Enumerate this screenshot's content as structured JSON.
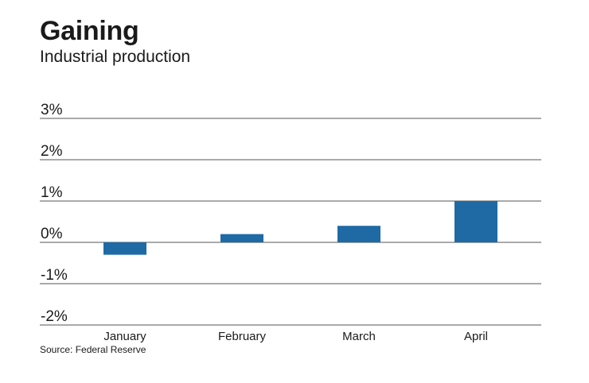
{
  "header": {
    "title": "Gaining",
    "subtitle": "Industrial production"
  },
  "source": "Source: Federal Reserve",
  "chart_data": {
    "type": "bar",
    "categories": [
      "January",
      "February",
      "March",
      "April"
    ],
    "values": [
      -0.3,
      0.2,
      0.4,
      1.0
    ],
    "ylim": [
      -2,
      3
    ],
    "yticks": [
      3,
      2,
      1,
      0,
      -1,
      -2
    ],
    "ytick_labels": [
      "3%",
      "2%",
      "1%",
      "0%",
      "-1%",
      "-2%"
    ],
    "grid": true,
    "bar_color": "#1f6aa5",
    "gridline_color": "#555555"
  }
}
